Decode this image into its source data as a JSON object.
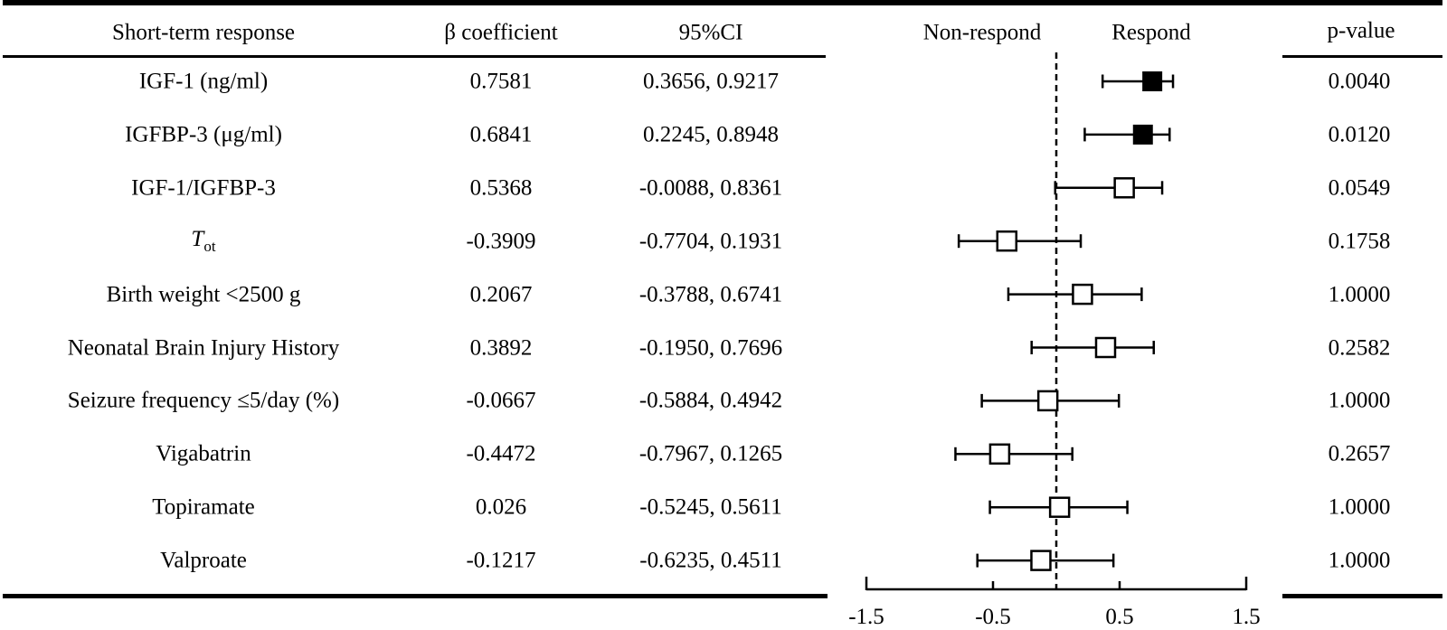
{
  "figure": {
    "headers": {
      "response": "Short-term response",
      "beta": "β coefficient",
      "ci": "95%CI",
      "nonrespond": "Non-respond",
      "respond": "Respond",
      "pvalue": "p-value"
    },
    "colors": {
      "foreground": "#000000",
      "background": "#ffffff"
    }
  },
  "chart_data": {
    "type": "scatter",
    "subtype": "forest_plot",
    "title": "Short-term response forest plot",
    "xlim": [
      -1.5,
      1.5
    ],
    "reference_line": 0,
    "reference_line_style": "dashed",
    "tick_values": [
      -1.5,
      -0.5,
      0.5,
      1.5
    ],
    "tick_labels": [
      "-1.5",
      "-0.5",
      "0.5",
      "1.5"
    ],
    "region_labels": {
      "left": "Non-respond",
      "right": "Respond"
    },
    "legend_position": "none",
    "grid": false,
    "rows": [
      {
        "label": "IGF-1 (ng/ml)",
        "beta": 0.7581,
        "beta_text": "0.7581",
        "ci": [
          0.3656,
          0.9217
        ],
        "ci_text": "0.3656, 0.9217",
        "p_text": "0.0040",
        "marker": "filled"
      },
      {
        "label": "IGFBP-3 (μg/ml)",
        "beta": 0.6841,
        "beta_text": "0.6841",
        "ci": [
          0.2245,
          0.8948
        ],
        "ci_text": "0.2245, 0.8948",
        "p_text": "0.0120",
        "marker": "filled"
      },
      {
        "label": "IGF-1/IGFBP-3",
        "beta": 0.5368,
        "beta_text": "0.5368",
        "ci": [
          -0.0088,
          0.8361
        ],
        "ci_text": "-0.0088, 0.8361",
        "p_text": "0.0549",
        "marker": "open"
      },
      {
        "label": "T",
        "label_sub": "ot",
        "label_italic": true,
        "beta": -0.3909,
        "beta_text": "-0.3909",
        "ci": [
          -0.7704,
          0.1931
        ],
        "ci_text": "-0.7704, 0.1931",
        "p_text": "0.1758",
        "marker": "open"
      },
      {
        "label": "Birth weight <2500 g",
        "beta": 0.2067,
        "beta_text": "0.2067",
        "ci": [
          -0.3788,
          0.6741
        ],
        "ci_text": "-0.3788, 0.6741",
        "p_text": "1.0000",
        "marker": "open"
      },
      {
        "label": "Neonatal Brain Injury History",
        "beta": 0.3892,
        "beta_text": "0.3892",
        "ci": [
          -0.195,
          0.7696
        ],
        "ci_text": "-0.1950, 0.7696",
        "p_text": "0.2582",
        "marker": "open"
      },
      {
        "label": "Seizure frequency ≤5/day (%)",
        "beta": -0.0667,
        "beta_text": "-0.0667",
        "ci": [
          -0.5884,
          0.4942
        ],
        "ci_text": "-0.5884, 0.4942",
        "p_text": "1.0000",
        "marker": "open"
      },
      {
        "label": "Vigabatrin",
        "beta": -0.4472,
        "beta_text": "-0.4472",
        "ci": [
          -0.7967,
          0.1265
        ],
        "ci_text": "-0.7967, 0.1265",
        "p_text": "0.2657",
        "marker": "open"
      },
      {
        "label": "Topiramate",
        "beta": 0.026,
        "beta_text": "0.026",
        "ci": [
          -0.5245,
          0.5611
        ],
        "ci_text": "-0.5245, 0.5611",
        "p_text": "1.0000",
        "marker": "open"
      },
      {
        "label": "Valproate",
        "beta": -0.1217,
        "beta_text": "-0.1217",
        "ci": [
          -0.6235,
          0.4511
        ],
        "ci_text": "-0.6235, 0.4511",
        "p_text": "1.0000",
        "marker": "open"
      }
    ]
  }
}
